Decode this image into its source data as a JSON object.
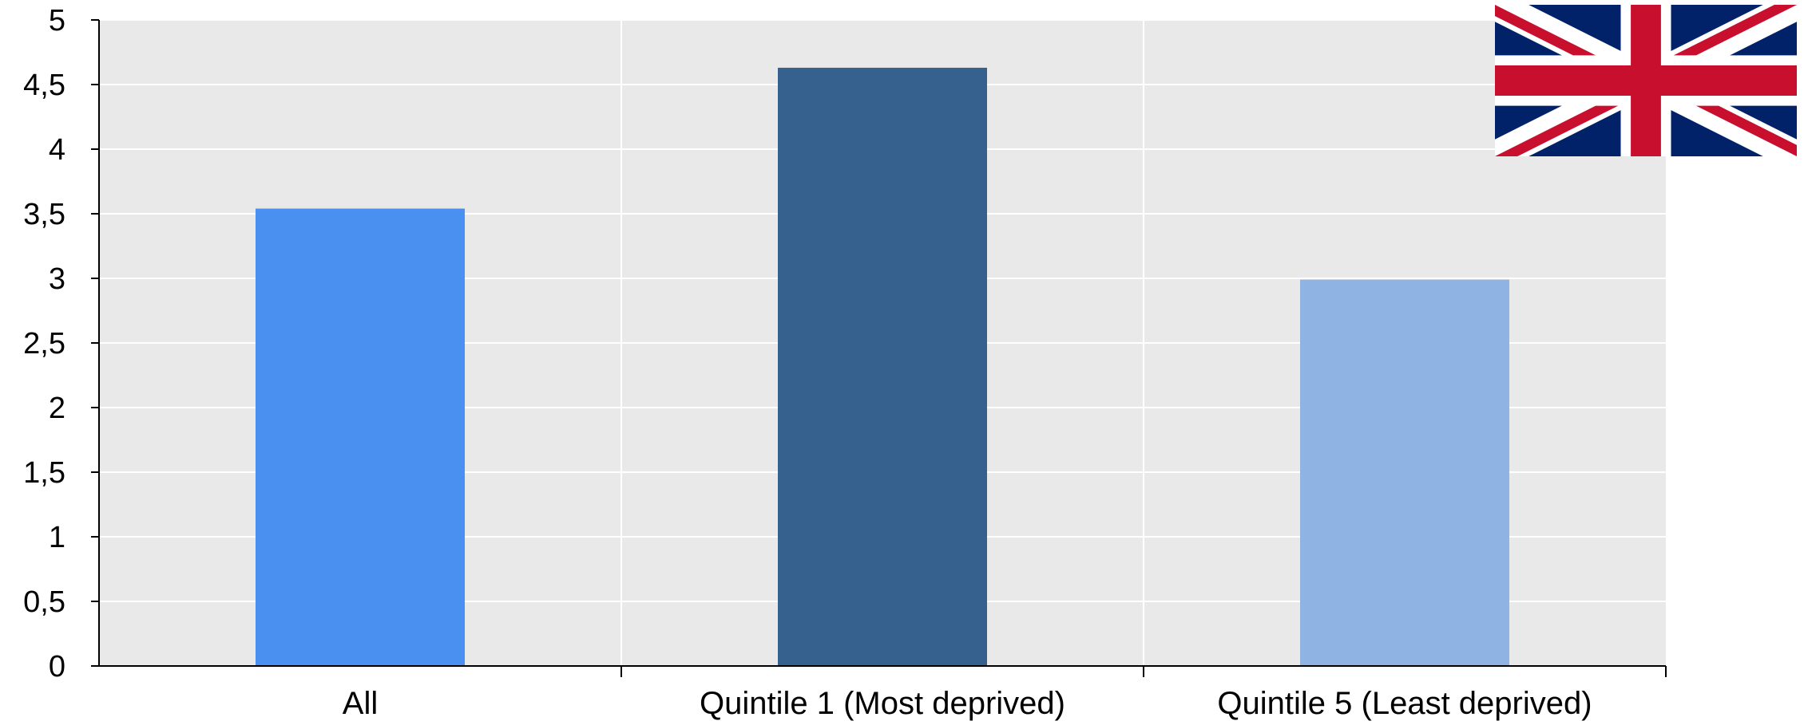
{
  "chart_data": {
    "type": "bar",
    "categories": [
      "All",
      "Quintile 1 (Most deprived)",
      "Quintile 5 (Least deprived)"
    ],
    "values": [
      3.54,
      4.63,
      2.99
    ],
    "colors": [
      "#4a90f0",
      "#36608e",
      "#8fb3e2"
    ],
    "ylim": [
      0,
      5
    ],
    "ytick_step": 0.5,
    "ytick_labels": [
      "0",
      "0,5",
      "1",
      "1,5",
      "2",
      "2,5",
      "3",
      "3,5",
      "4",
      "4,5",
      "5"
    ],
    "grid": true,
    "plot_background": "#e9e9e9",
    "title": "",
    "xlabel": "",
    "ylabel": ""
  },
  "flag": {
    "icon": "uk-flag-icon",
    "colors": {
      "blue": "#012169",
      "red": "#C8102E",
      "white": "#FFFFFF"
    }
  }
}
